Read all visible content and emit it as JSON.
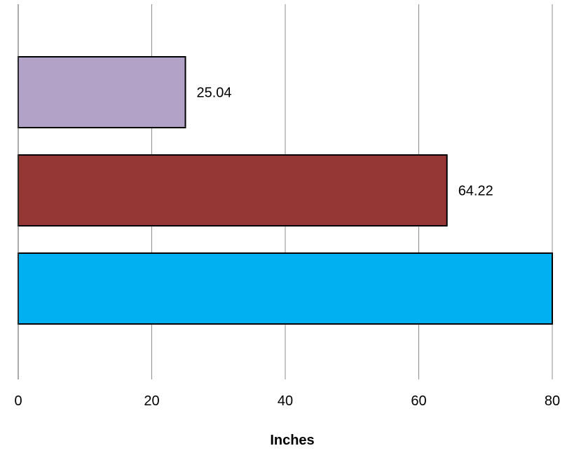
{
  "chart_data": {
    "type": "bar",
    "orientation": "horizontal",
    "title": "",
    "xlabel": "Inches",
    "ylabel": "",
    "xlim": [
      0,
      80
    ],
    "x_ticks": [
      0,
      20,
      40,
      60,
      80
    ],
    "grid": "vertical",
    "legend": "none",
    "bars": [
      {
        "value": 25.04,
        "label": "25.04",
        "color": "#B3A2C7"
      },
      {
        "value": 64.22,
        "label": "64.22",
        "color": "#953735"
      },
      {
        "value": 80,
        "label": "",
        "color": "#00B0F0"
      }
    ]
  }
}
